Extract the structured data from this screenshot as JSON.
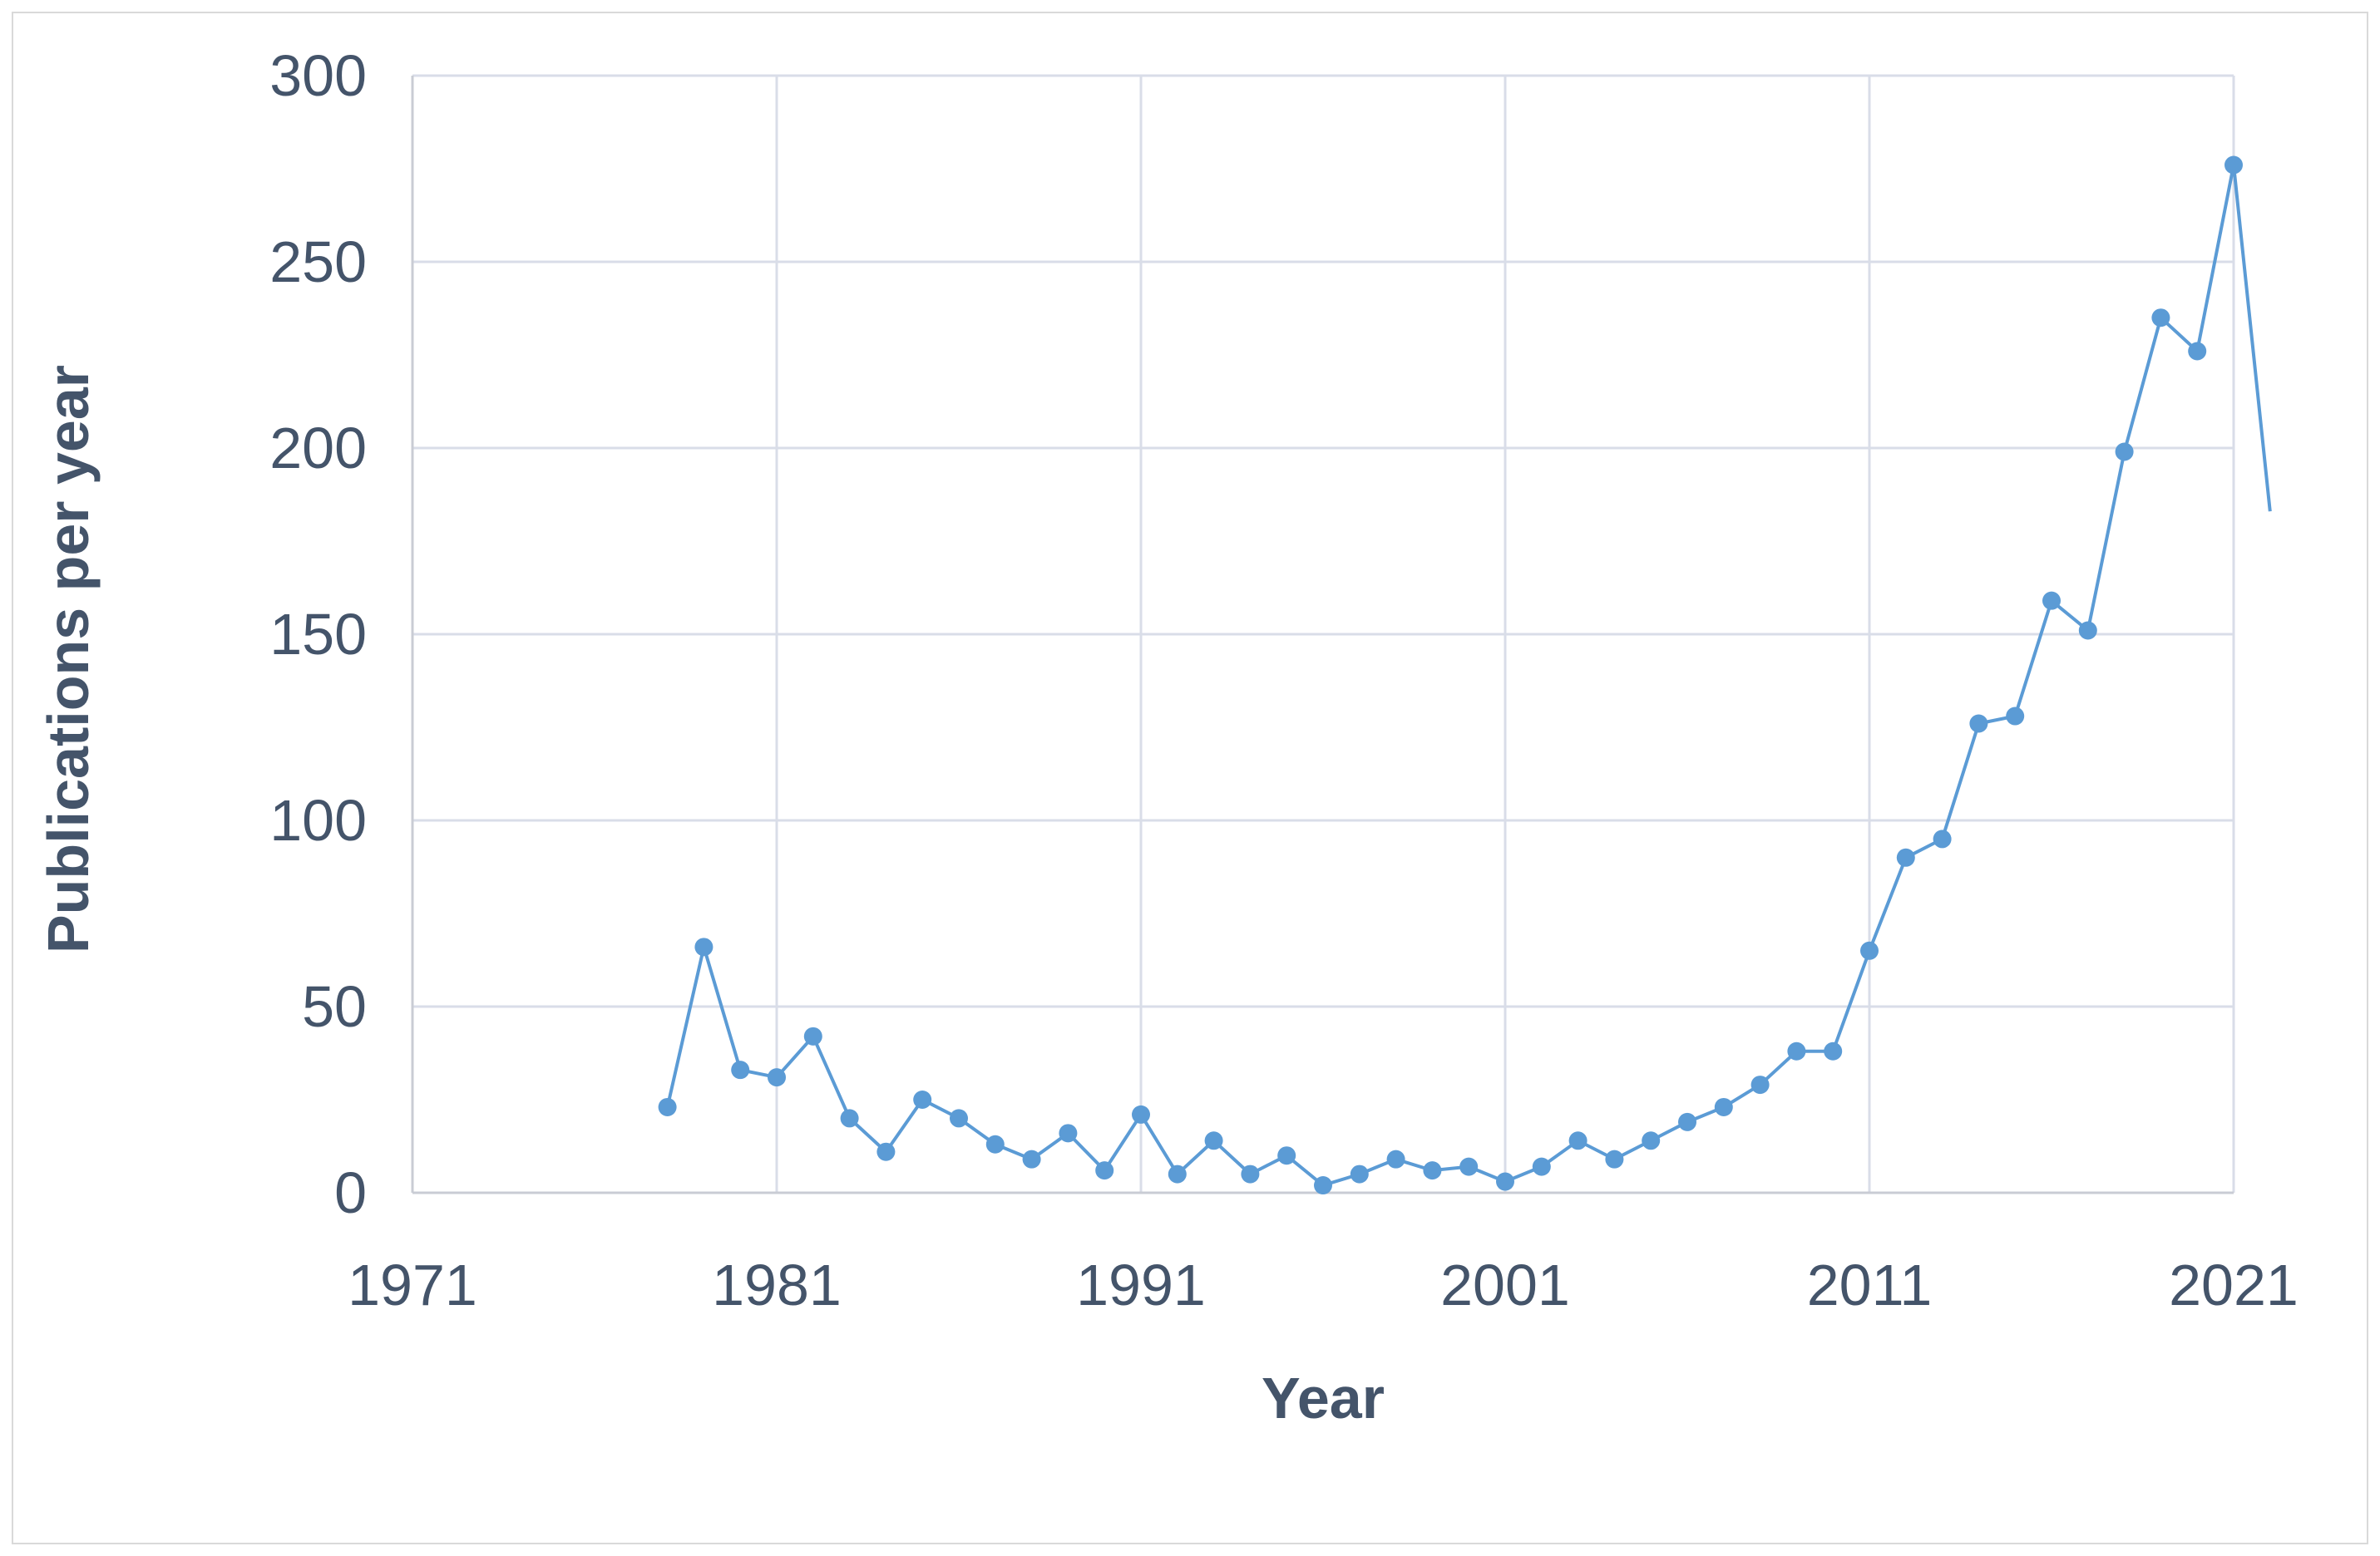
{
  "chart_data": {
    "type": "line",
    "title": "",
    "xlabel": "Year",
    "ylabel": "Publications per year",
    "xlim": [
      1971,
      2021
    ],
    "ylim": [
      0,
      300
    ],
    "x_ticks": [
      1971,
      1981,
      1991,
      2001,
      2011,
      2021
    ],
    "y_ticks": [
      0,
      50,
      100,
      150,
      200,
      250,
      300
    ],
    "grid": true,
    "legend": "none",
    "series": [
      {
        "color": "#5b9bd5",
        "x": [
          1978,
          1979,
          1980,
          1981,
          1982,
          1983,
          1984,
          1985,
          1986,
          1987,
          1988,
          1989,
          1990,
          1991,
          1992,
          1993,
          1994,
          1995,
          1996,
          1997,
          1998,
          1999,
          2000,
          2001,
          2002,
          2003,
          2004,
          2005,
          2006,
          2007,
          2008,
          2009,
          2010,
          2011,
          2012,
          2013,
          2014,
          2015,
          2016,
          2017,
          2018,
          2019,
          2020,
          2021
        ],
        "values": [
          23,
          66,
          33,
          31,
          42,
          20,
          11,
          25,
          20,
          13,
          9,
          16,
          6,
          21,
          5,
          14,
          5,
          10,
          2,
          5,
          9,
          6,
          7,
          3,
          7,
          14,
          9,
          14,
          19,
          23,
          29,
          38,
          38,
          65,
          90,
          95,
          126,
          128,
          159,
          151,
          199,
          235,
          226,
          276
        ]
      }
    ],
    "trailing_segment": {
      "x": 2022,
      "value": 183
    }
  }
}
